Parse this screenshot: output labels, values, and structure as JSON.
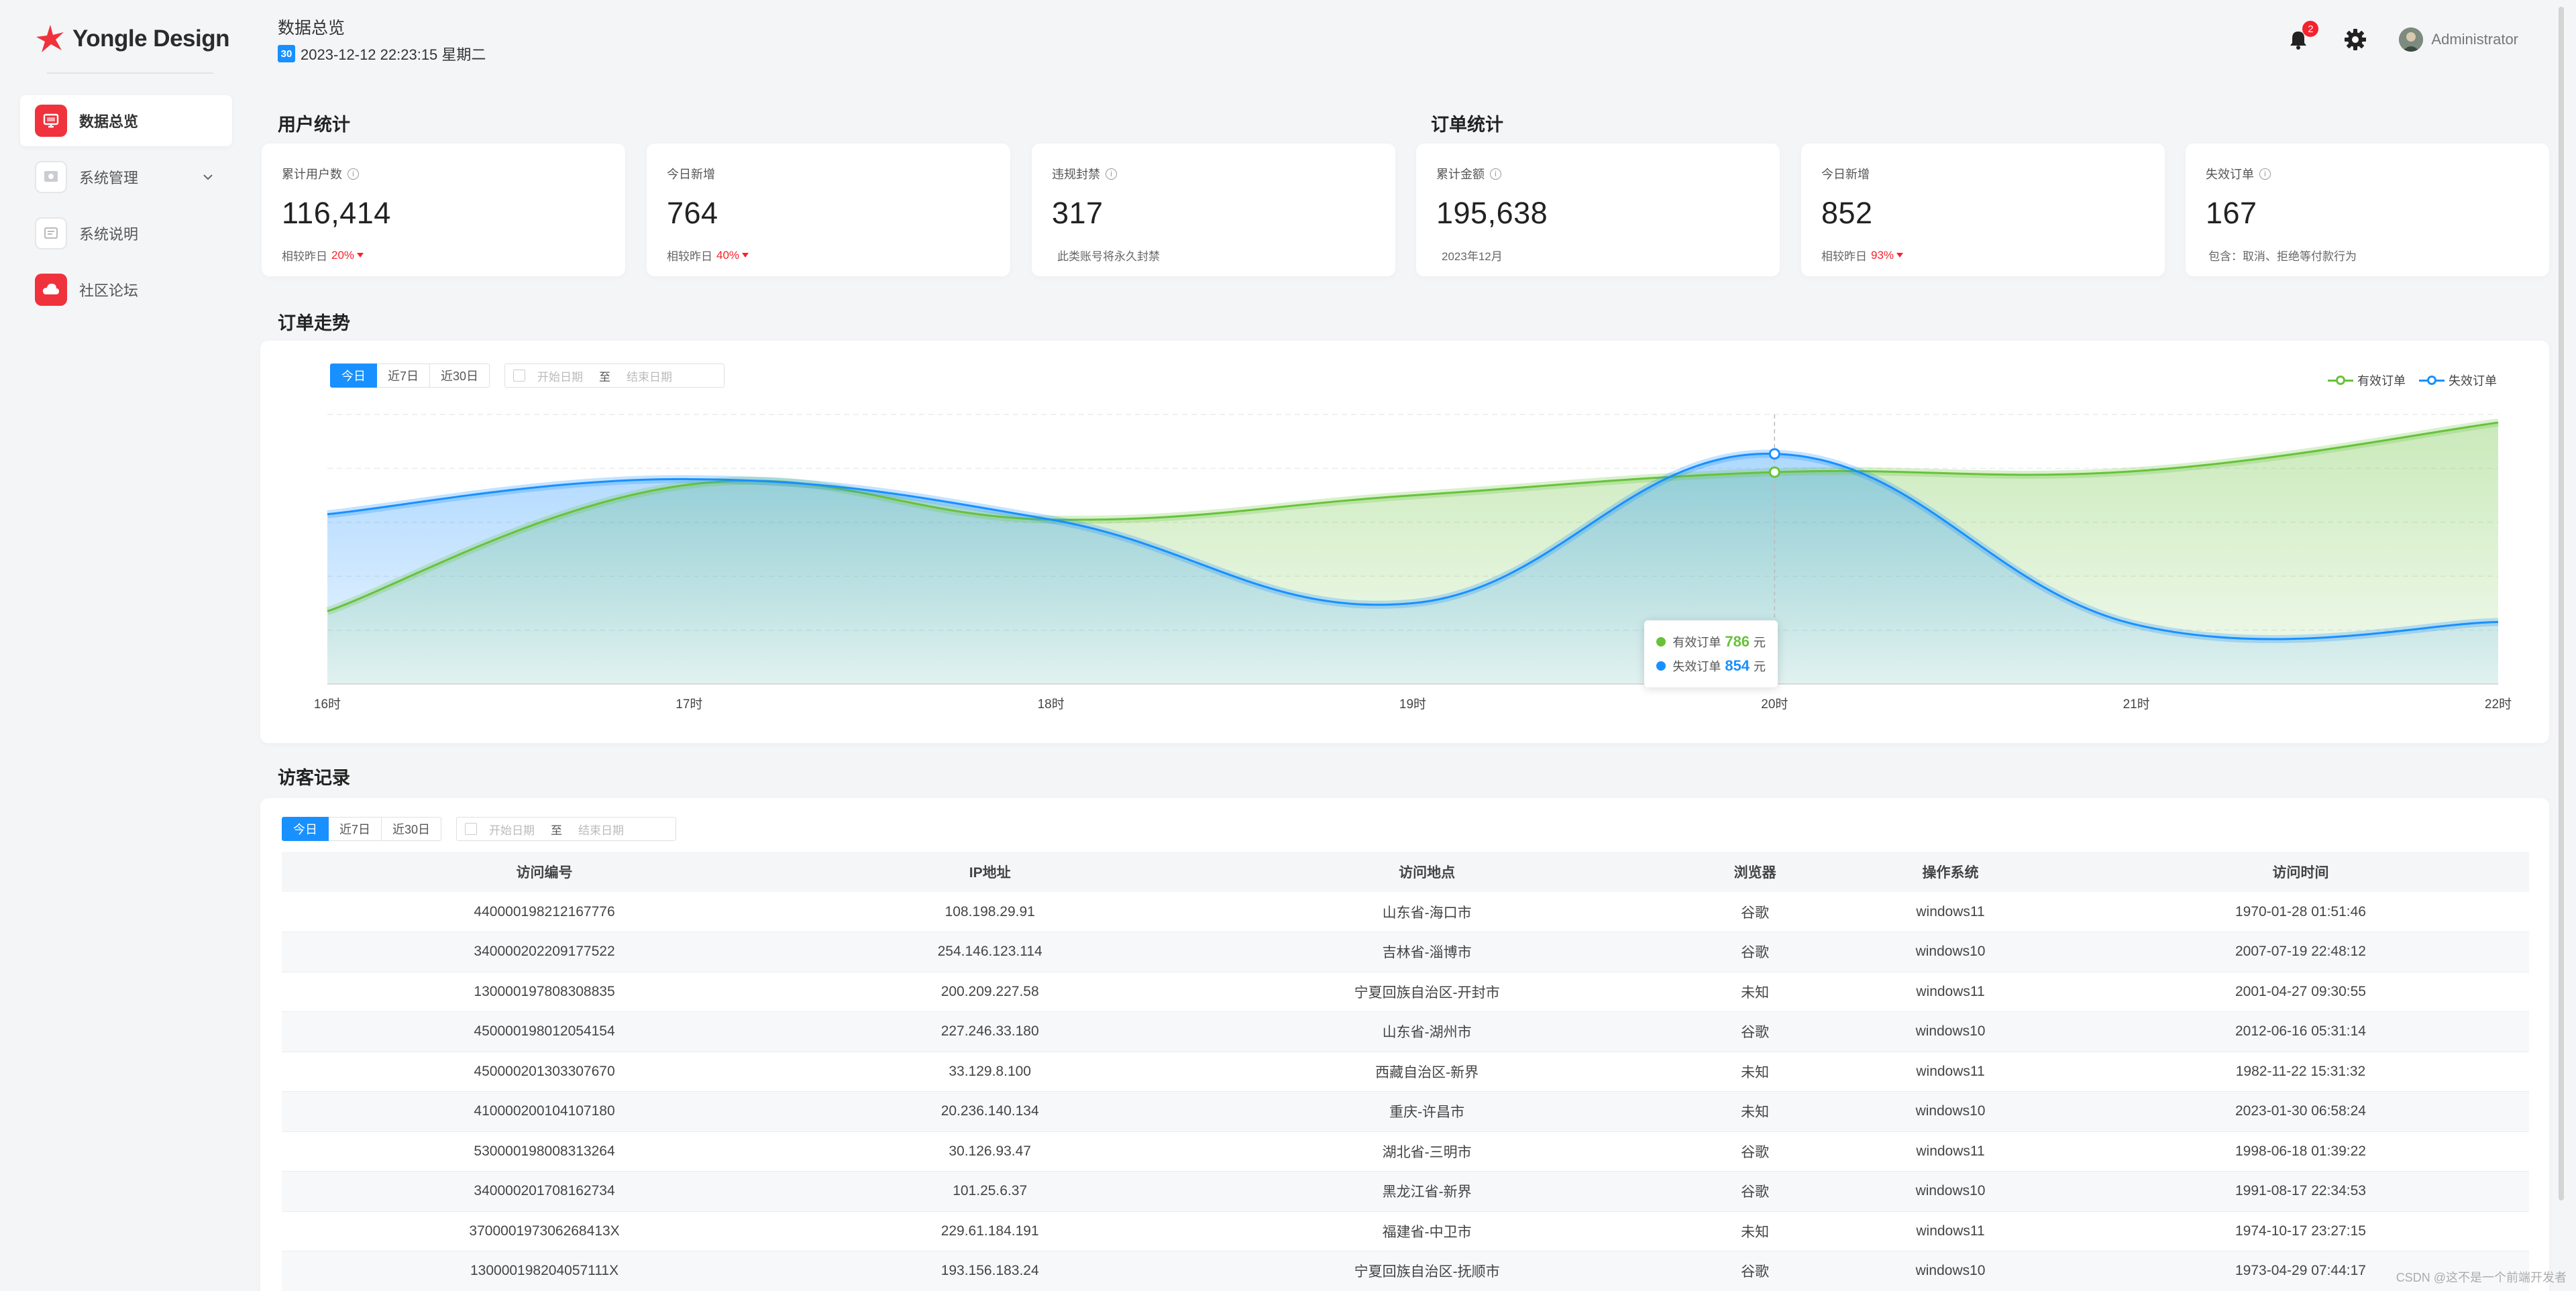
{
  "app": {
    "logo_text": "Yongle Design"
  },
  "sidebar": {
    "items": [
      {
        "label": "数据总览",
        "icon": "monitor-icon",
        "active": true
      },
      {
        "label": "系统管理",
        "icon": "settings-panel-icon",
        "active": false,
        "has_chevron": true
      },
      {
        "label": "系统说明",
        "icon": "document-icon",
        "active": false
      },
      {
        "label": "社区论坛",
        "icon": "cloud-icon",
        "active": false
      }
    ]
  },
  "header": {
    "title": "数据总览",
    "calendar_icon_text": "30",
    "datetime": "2023-12-12 22:23:15 星期二",
    "notification_count": "2",
    "user_name": "Administrator"
  },
  "user_stats": {
    "title": "用户统计",
    "cards": [
      {
        "label": "累计用户数",
        "has_info": true,
        "value": "116,414",
        "foot_text": "相较昨日",
        "foot_pct": "20%",
        "trend": "down"
      },
      {
        "label": "今日新增",
        "has_info": false,
        "value": "764",
        "foot_text": "相较昨日",
        "foot_pct": "40%",
        "trend": "down"
      },
      {
        "label": "违规封禁",
        "has_info": true,
        "value": "317",
        "foot_text": "此类账号将永久封禁",
        "foot_pct": "",
        "trend": ""
      }
    ]
  },
  "order_stats": {
    "title": "订单统计",
    "cards": [
      {
        "label": "累计金额",
        "has_info": true,
        "value": "195,638",
        "foot_text": "2023年12月",
        "foot_pct": "",
        "trend": ""
      },
      {
        "label": "今日新增",
        "has_info": false,
        "value": "852",
        "foot_text": "相较昨日",
        "foot_pct": "93%",
        "trend": "down"
      },
      {
        "label": "失效订单",
        "has_info": true,
        "value": "167",
        "foot_text": "包含：取消、拒绝等付款行为",
        "foot_pct": "",
        "trend": ""
      }
    ]
  },
  "order_trend": {
    "title": "订单走势",
    "filters": [
      "今日",
      "近7日",
      "近30日"
    ],
    "active_filter": "今日",
    "range_start_placeholder": "开始日期",
    "range_sep": "至",
    "range_end_placeholder": "结束日期",
    "tooltip": {
      "unit": "元"
    }
  },
  "chart_data": {
    "type": "area",
    "categories": [
      "16时",
      "17时",
      "18时",
      "19时",
      "20时",
      "21时",
      "22时"
    ],
    "ylim": [
      0,
      1000
    ],
    "grid": true,
    "legend_position": "top-right",
    "series": [
      {
        "name": "有效订单",
        "color": "#67c23a",
        "values": [
          270,
          740,
          610,
          700,
          786,
          790,
          970
        ]
      },
      {
        "name": "失效订单",
        "color": "#1890ff",
        "values": [
          630,
          760,
          610,
          300,
          854,
          220,
          230
        ]
      }
    ],
    "highlight_index": 4
  },
  "visitors": {
    "title": "访客记录",
    "filters": [
      "今日",
      "近7日",
      "近30日"
    ],
    "active_filter": "今日",
    "range_start_placeholder": "开始日期",
    "range_sep": "至",
    "range_end_placeholder": "结束日期",
    "columns": [
      "访问编号",
      "IP地址",
      "访问地点",
      "浏览器",
      "操作系统",
      "访问时间"
    ],
    "rows": [
      [
        "440000198212167776",
        "108.198.29.91",
        "山东省-海口市",
        "谷歌",
        "windows11",
        "1970-01-28 01:51:46"
      ],
      [
        "340000202209177522",
        "254.146.123.114",
        "吉林省-淄博市",
        "谷歌",
        "windows10",
        "2007-07-19 22:48:12"
      ],
      [
        "130000197808308835",
        "200.209.227.58",
        "宁夏回族自治区-开封市",
        "未知",
        "windows11",
        "2001-04-27 09:30:55"
      ],
      [
        "450000198012054154",
        "227.246.33.180",
        "山东省-湖州市",
        "谷歌",
        "windows10",
        "2012-06-16 05:31:14"
      ],
      [
        "450000201303307670",
        "33.129.8.100",
        "西藏自治区-新界",
        "未知",
        "windows11",
        "1982-11-22 15:31:32"
      ],
      [
        "410000200104107180",
        "20.236.140.134",
        "重庆-许昌市",
        "未知",
        "windows10",
        "2023-01-30 06:58:24"
      ],
      [
        "530000198008313264",
        "30.126.93.47",
        "湖北省-三明市",
        "谷歌",
        "windows11",
        "1998-06-18 01:39:22"
      ],
      [
        "340000201708162734",
        "101.25.6.37",
        "黑龙江省-新界",
        "谷歌",
        "windows10",
        "1991-08-17 22:34:53"
      ],
      [
        "370000197306268413X",
        "229.61.184.191",
        "福建省-中卫市",
        "未知",
        "windows11",
        "1974-10-17 23:27:15"
      ],
      [
        "130000198204057111X",
        "193.156.183.24",
        "宁夏回族自治区-抚顺市",
        "谷歌",
        "windows10",
        "1973-04-29 07:44:17"
      ]
    ]
  },
  "watermark": "CSDN @这不是一个前端开发者"
}
